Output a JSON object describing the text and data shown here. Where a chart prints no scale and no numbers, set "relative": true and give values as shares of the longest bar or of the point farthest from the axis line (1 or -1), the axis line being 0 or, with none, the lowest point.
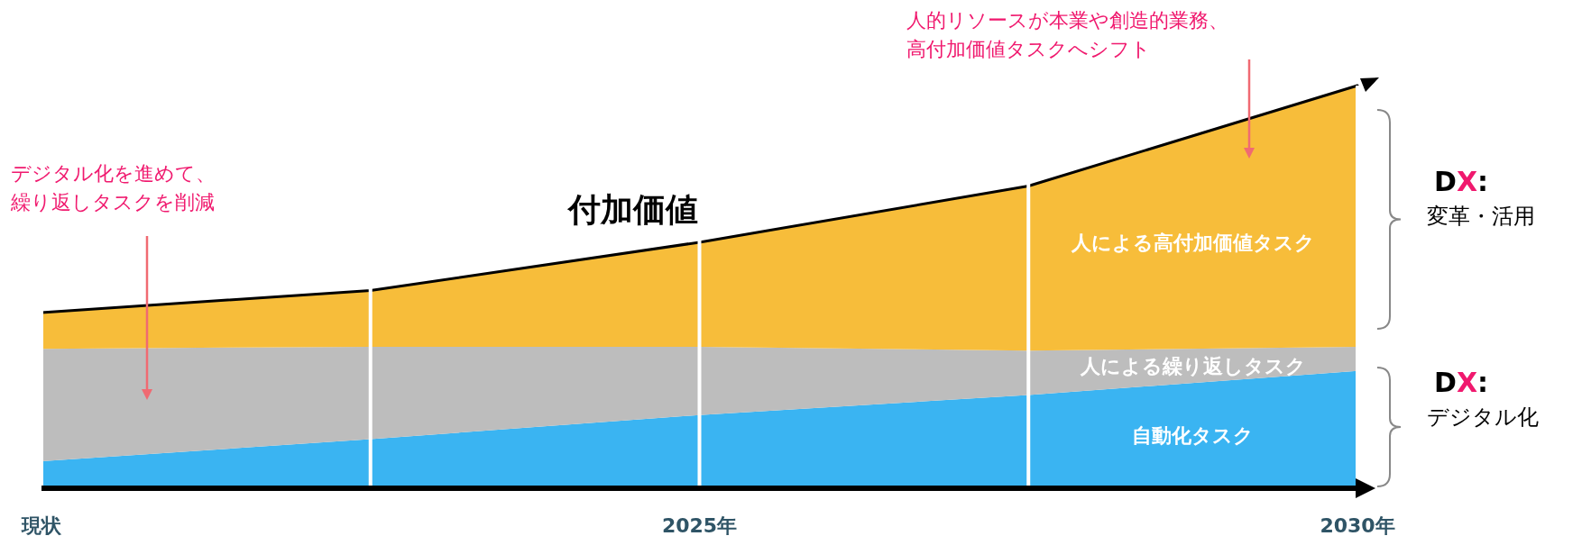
{
  "chart_data": {
    "type": "area",
    "stacked": true,
    "relative": true,
    "grid": "x",
    "legend": false,
    "categories": [
      "現状",
      null,
      "2025年",
      null,
      "2030年"
    ],
    "series": [
      {
        "name": "自動化タスク",
        "color": "#3ab4f2",
        "values": [
          0.065,
          0.12,
          0.18,
          0.23,
          0.29
        ]
      },
      {
        "name": "人による繰り返しタスク",
        "color": "#bdbdbd",
        "values": [
          0.28,
          0.23,
          0.17,
          0.11,
          0.06
        ]
      },
      {
        "name": "人による高付加価値タスク",
        "color": "#f7bd3a",
        "values": [
          0.09,
          0.14,
          0.26,
          0.41,
          0.65
        ]
      }
    ],
    "annotations": [
      "付加価値",
      "デジタル化を進めて、",
      "繰り返しタスクを削減",
      "人的リソースが本業や創造的業務、",
      "高付加価値タスクへシフト",
      "DX:",
      "変革・活用",
      "DX:",
      "デジタル化"
    ]
  }
}
